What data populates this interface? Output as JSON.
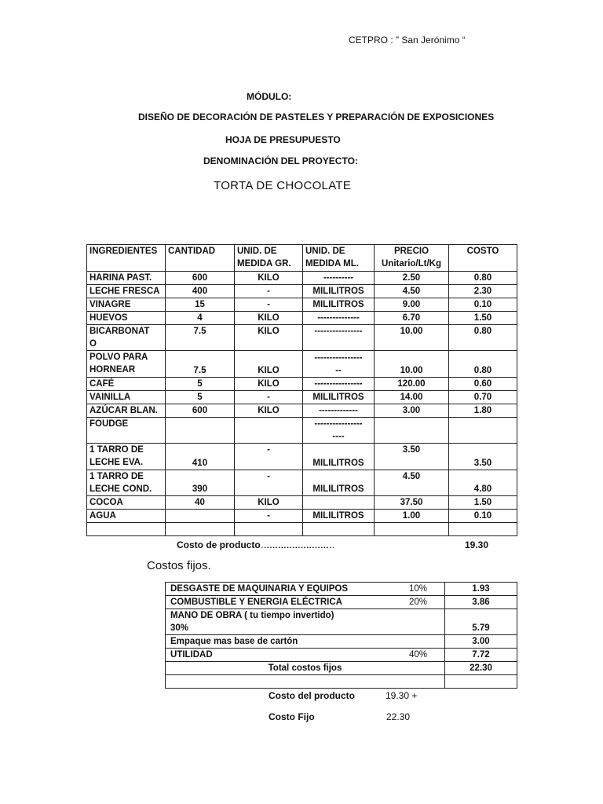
{
  "header": {
    "institution": "CETPRO : ” San Jerónimo “",
    "module_label": "MÓDULO:",
    "module_name": "DISEÑO DE DECORACIÓN DE PASTELES Y PREPARACIÓN DE EXPOSICIONES",
    "sheet_title": "HOJA DE PRESUPUESTO",
    "project_label": "DENOMINACIÓN DEL PROYECTO:",
    "project_name": "TORTA DE CHOCOLATE"
  },
  "ingredients_table": {
    "headers": [
      "INGREDIENTES",
      "CANTIDAD",
      "UNID. DE\nMEDIDA GR.",
      "UNID. DE\nMEDIDA ML.",
      "PRECIO\nUnitario/Lt/Kg",
      "COSTO"
    ],
    "rows": [
      [
        "HARINA PAST.",
        "600",
        "KILO",
        "----------",
        "2.50",
        "0.80"
      ],
      [
        "LECHE FRESCA",
        "400",
        "-",
        "MILILITROS",
        "4.50",
        "2.30"
      ],
      [
        "VINAGRE",
        "15",
        "-",
        "MILILITROS",
        "9.00",
        "0.10"
      ],
      [
        "HUEVOS",
        "4",
        "KILO",
        "--------------",
        "6.70",
        "1.50"
      ],
      [
        "BICARBONAT\nO",
        "7.5",
        "KILO",
        "----------------",
        "10.00",
        "0.80"
      ],
      [
        "POLVO PARA\nHORNEAR",
        "7.5",
        "KILO",
        "----------------\n--",
        "10.00",
        "0.80"
      ],
      [
        "CAFÉ",
        "5",
        "KILO",
        "----------------",
        "120.00",
        "0.60"
      ],
      [
        "VAINILLA",
        "5",
        "-",
        "MILILITROS",
        "14.00",
        "0.70"
      ],
      [
        "AZÚCAR BLAN.",
        "600",
        "KILO",
        "-------------",
        "3.00",
        "1.80"
      ],
      [
        " FOUDGE",
        "",
        "",
        "----------------\n----",
        "",
        ""
      ],
      [
        "1 TARRO DE\nLECHE EVA.",
        "410",
        "-",
        "MILILITROS",
        "3.50",
        "3.50"
      ],
      [
        "1 TARRO DE\nLECHE COND.",
        "390",
        "-",
        "MILILITROS",
        "4.50",
        "4.80"
      ],
      [
        "COCOA",
        "40",
        "KILO",
        "",
        "37.50",
        "1.50"
      ],
      [
        "AGUA",
        "",
        "-",
        "MILILITROS",
        "1.00",
        "0.10"
      ],
      [
        "",
        "",
        "",
        "",
        "",
        ""
      ]
    ],
    "total_label": "Costo de producto………………………………………………………………",
    "total_value": "19.30"
  },
  "fixed_costs": {
    "title": "Costos fijos.",
    "rows": [
      {
        "label": "DESGASTE DE MAQUINARIA Y EQUIPOS",
        "pct": "10%",
        "value": "1.93"
      },
      {
        "label": "COMBUSTIBLE Y ENERGIA ELÉCTRICA",
        "pct": "20%",
        "value": "3.86"
      },
      {
        "label": "MANO DE OBRA    ( tu tiempo invertido)\n30%",
        "pct": "",
        "value": "5.79"
      },
      {
        "label": " Empaque mas base de cartón",
        "pct": "",
        "value": "3.00"
      },
      {
        "label": "UTILIDAD",
        "pct": "40%",
        "value": "7.72"
      }
    ],
    "total_label": "Total costos fijos",
    "total_value": "22.30"
  },
  "summary": {
    "product_label": "Costo del producto",
    "product_value": "19.30 +",
    "fixed_label": "Costo Fijo",
    "fixed_value": "22.30"
  }
}
